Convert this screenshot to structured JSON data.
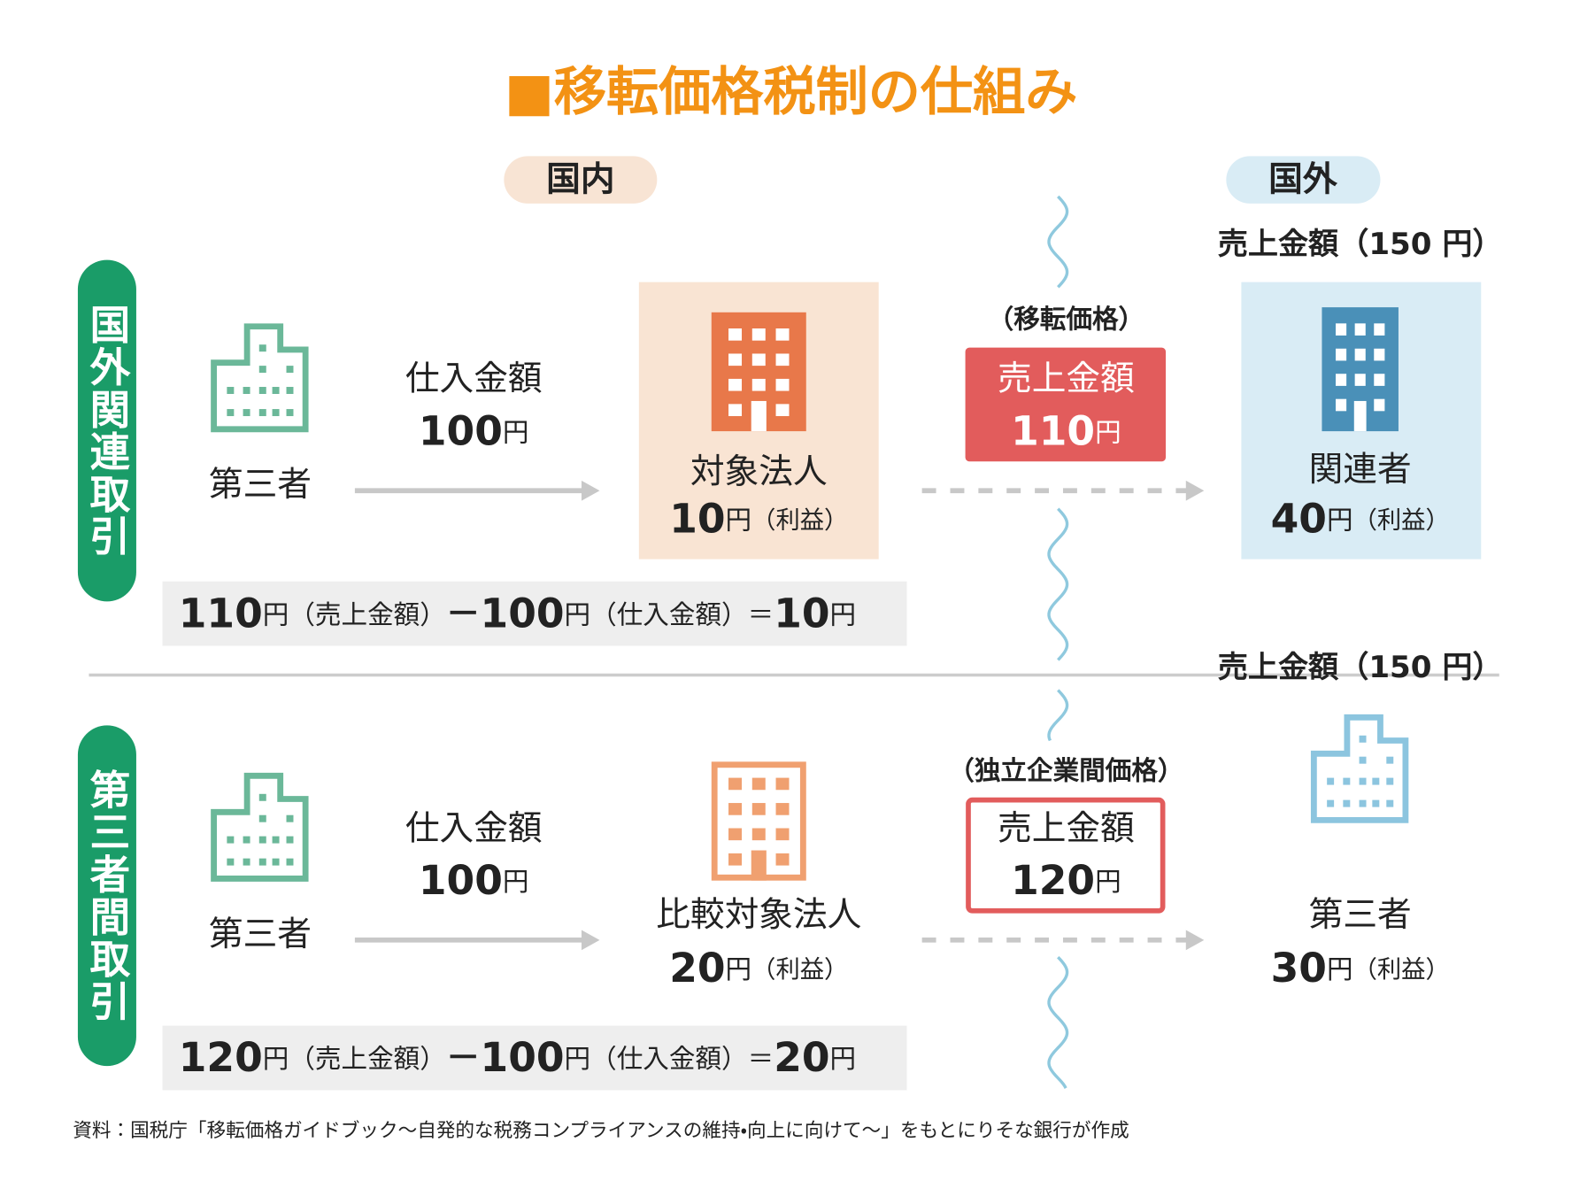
{
  "title": "■移転価格税制の仕組み",
  "headers": {
    "domestic": "国内",
    "overseas": "国外"
  },
  "sections": [
    {
      "label": "国外関連取引",
      "supplier": "第三者",
      "purchase_label": "仕入金額",
      "purchase_amount": 100,
      "purchase_unit": "円",
      "entity": "対象法人",
      "entity_profit": 10,
      "entity_profit_unit": "円",
      "entity_profit_note": "（利益）",
      "price_type": "（移転価格）",
      "sale_label": "売上金額",
      "sale_amount": 110,
      "sale_unit": "円",
      "counterparty_sales": "売上金額（150 円）",
      "counterparty": "関連者",
      "counterparty_profit": 40,
      "counterparty_profit_unit": "円",
      "counterparty_profit_note": "（利益）",
      "formula": [
        110,
        "円",
        "（売上金額）",
        "－",
        100,
        "円",
        "（仕入金額）＝",
        10,
        "円"
      ]
    },
    {
      "label": "第三者間取引",
      "supplier": "第三者",
      "purchase_label": "仕入金額",
      "purchase_amount": 100,
      "purchase_unit": "円",
      "entity": "比較対象法人",
      "entity_profit": 20,
      "entity_profit_unit": "円",
      "entity_profit_note": "（利益）",
      "price_type": "（独立企業間価格）",
      "sale_label": "売上金額",
      "sale_amount": 120,
      "sale_unit": "円",
      "counterparty_sales": "売上金額（150 円）",
      "counterparty": "第三者",
      "counterparty_profit": 30,
      "counterparty_profit_unit": "円",
      "counterparty_profit_note": "（利益）",
      "formula": [
        120,
        "円",
        "（売上金額）",
        "－",
        100,
        "円",
        "（仕入金額）＝",
        20,
        "円"
      ]
    }
  ],
  "source": "資料：国税庁「移転価格ガイドブック～自発的な税務コンプライアンスの維持・向上に向けて～」をもとにりそな銀行が作成"
}
